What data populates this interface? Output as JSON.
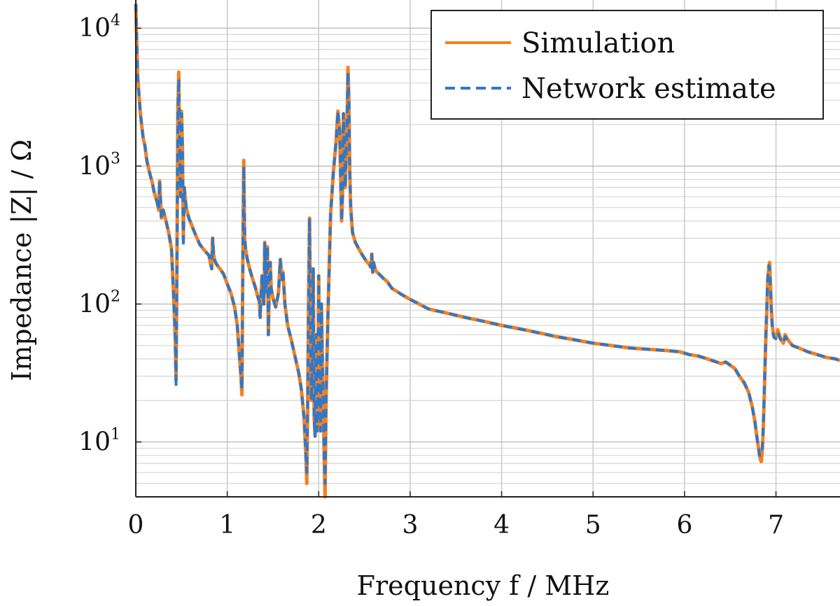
{
  "chart_data": {
    "type": "line",
    "xlabel": "Frequency f / MHz",
    "ylabel": "Impedance |Z| / Ω",
    "xlim": [
      0,
      7.7
    ],
    "ylim": [
      4,
      16000
    ],
    "yscale": "log",
    "grid": true,
    "legend": "top-right",
    "xticks": [
      {
        "value": 0,
        "label": "0"
      },
      {
        "value": 1,
        "label": "1"
      },
      {
        "value": 2,
        "label": "2"
      },
      {
        "value": 3,
        "label": "3"
      },
      {
        "value": 4,
        "label": "4"
      },
      {
        "value": 5,
        "label": "5"
      },
      {
        "value": 6,
        "label": "6"
      },
      {
        "value": 7,
        "label": "7"
      }
    ],
    "yticks": [
      {
        "value": 10,
        "base": "10",
        "exp": "1"
      },
      {
        "value": 100,
        "base": "10",
        "exp": "2"
      },
      {
        "value": 1000,
        "base": "10",
        "exp": "3"
      },
      {
        "value": 10000,
        "base": "10",
        "exp": "4"
      }
    ],
    "x": [
      0.0,
      0.02,
      0.05,
      0.08,
      0.1,
      0.12,
      0.15,
      0.18,
      0.2,
      0.23,
      0.25,
      0.26,
      0.28,
      0.3,
      0.33,
      0.36,
      0.39,
      0.41,
      0.43,
      0.44,
      0.45,
      0.46,
      0.47,
      0.48,
      0.49,
      0.5,
      0.51,
      0.52,
      0.53,
      0.55,
      0.58,
      0.62,
      0.66,
      0.7,
      0.75,
      0.8,
      0.83,
      0.84,
      0.85,
      0.86,
      0.88,
      0.92,
      0.96,
      1.0,
      1.04,
      1.08,
      1.11,
      1.13,
      1.15,
      1.16,
      1.17,
      1.18,
      1.19,
      1.2,
      1.22,
      1.25,
      1.28,
      1.31,
      1.33,
      1.35,
      1.36,
      1.37,
      1.38,
      1.4,
      1.41,
      1.42,
      1.43,
      1.44,
      1.45,
      1.46,
      1.47,
      1.48,
      1.5,
      1.53,
      1.56,
      1.58,
      1.6,
      1.61,
      1.63,
      1.66,
      1.7,
      1.74,
      1.78,
      1.81,
      1.84,
      1.86,
      1.87,
      1.88,
      1.89,
      1.9,
      1.91,
      1.92,
      1.93,
      1.94,
      1.95,
      1.96,
      1.97,
      1.98,
      1.99,
      2.0,
      2.01,
      2.02,
      2.03,
      2.04,
      2.05,
      2.06,
      2.07,
      2.08,
      2.1,
      2.13,
      2.16,
      2.19,
      2.21,
      2.23,
      2.24,
      2.25,
      2.26,
      2.27,
      2.28,
      2.29,
      2.3,
      2.31,
      2.32,
      2.33,
      2.34,
      2.35,
      2.37,
      2.4,
      2.44,
      2.48,
      2.52,
      2.55,
      2.57,
      2.58,
      2.59,
      2.6,
      2.62,
      2.66,
      2.7,
      2.75,
      2.8,
      2.9,
      3.0,
      3.1,
      3.2,
      3.4,
      3.6,
      3.8,
      4.0,
      4.2,
      4.4,
      4.6,
      4.8,
      5.0,
      5.2,
      5.4,
      5.6,
      5.8,
      5.95,
      6.0,
      6.05,
      6.15,
      6.25,
      6.35,
      6.4,
      6.45,
      6.5,
      6.55,
      6.6,
      6.65,
      6.7,
      6.74,
      6.77,
      6.79,
      6.81,
      6.82,
      6.83,
      6.84,
      6.85,
      6.86,
      6.87,
      6.88,
      6.89,
      6.9,
      6.91,
      6.92,
      6.93,
      6.94,
      6.95,
      6.96,
      6.97,
      6.98,
      7.0,
      7.02,
      7.05,
      7.08,
      7.1,
      7.13,
      7.18,
      7.25,
      7.35,
      7.45,
      7.55,
      7.65,
      7.7
    ],
    "series": [
      {
        "name": "Simulation",
        "color": "#f5801e",
        "dash": "solid",
        "values": [
          15000,
          4500,
          2400,
          1600,
          1400,
          1100,
          900,
          760,
          650,
          560,
          480,
          780,
          420,
          480,
          400,
          330,
          250,
          130,
          60,
          28,
          200,
          2600,
          4800,
          1200,
          600,
          2500,
          1400,
          300,
          700,
          500,
          420,
          360,
          310,
          270,
          245,
          225,
          180,
          300,
          230,
          210,
          195,
          180,
          165,
          140,
          120,
          95,
          70,
          45,
          30,
          22,
          200,
          1100,
          300,
          250,
          210,
          175,
          150,
          130,
          115,
          105,
          80,
          120,
          160,
          100,
          280,
          120,
          160,
          260,
          60,
          140,
          200,
          130,
          110,
          95,
          120,
          210,
          150,
          170,
          100,
          70,
          55,
          42,
          32,
          24,
          15,
          8,
          5,
          20,
          120,
          420,
          80,
          20,
          40,
          180,
          15,
          11,
          60,
          12,
          20,
          160,
          30,
          12,
          100,
          40,
          20,
          8,
          4,
          20,
          80,
          450,
          900,
          1500,
          2500,
          1800,
          800,
          400,
          600,
          2400,
          1500,
          700,
          1200,
          2000,
          5200,
          3000,
          900,
          500,
          330,
          280,
          250,
          225,
          205,
          195,
          185,
          230,
          170,
          200,
          175,
          165,
          155,
          145,
          130,
          118,
          108,
          100,
          92,
          86,
          80,
          75,
          70,
          66,
          62,
          58,
          55,
          52,
          50,
          48,
          47,
          46,
          45,
          44,
          43,
          42,
          40,
          38,
          37,
          38,
          36,
          34,
          30,
          27,
          23,
          18,
          14,
          11,
          9,
          8,
          7.5,
          7.2,
          8.5,
          12,
          20,
          35,
          60,
          90,
          150,
          180,
          200,
          140,
          90,
          70,
          62,
          58,
          57,
          65,
          56,
          52,
          60,
          55,
          50,
          48,
          45,
          43,
          41,
          40,
          39
        ]
      },
      {
        "name": "Network estimate",
        "color": "#2f78c9",
        "dash": "dashed",
        "values": [
          15000,
          4500,
          2400,
          1600,
          1400,
          1100,
          900,
          760,
          650,
          560,
          480,
          780,
          420,
          480,
          400,
          330,
          250,
          130,
          60,
          25,
          200,
          2600,
          4300,
          1200,
          600,
          2400,
          1400,
          260,
          700,
          500,
          420,
          360,
          310,
          270,
          245,
          225,
          180,
          300,
          230,
          210,
          195,
          180,
          165,
          140,
          120,
          95,
          70,
          45,
          30,
          24,
          200,
          1000,
          300,
          250,
          210,
          175,
          150,
          130,
          115,
          105,
          80,
          120,
          160,
          100,
          280,
          120,
          160,
          260,
          60,
          140,
          200,
          130,
          110,
          95,
          120,
          210,
          150,
          170,
          100,
          70,
          55,
          42,
          32,
          24,
          15,
          8,
          6,
          20,
          120,
          420,
          80,
          20,
          40,
          180,
          15,
          11,
          60,
          12,
          20,
          160,
          30,
          12,
          100,
          40,
          20,
          8,
          5,
          20,
          80,
          450,
          900,
          1500,
          2500,
          1800,
          800,
          400,
          600,
          2400,
          1500,
          700,
          1200,
          2000,
          4800,
          3000,
          900,
          500,
          330,
          280,
          250,
          225,
          205,
          195,
          185,
          230,
          170,
          200,
          175,
          165,
          155,
          145,
          130,
          118,
          108,
          100,
          92,
          86,
          80,
          75,
          70,
          66,
          62,
          58,
          55,
          52,
          50,
          48,
          47,
          46,
          45,
          44,
          43,
          42,
          40,
          38,
          37,
          38,
          36,
          34,
          30,
          27,
          23,
          18,
          14,
          11,
          9,
          8,
          8,
          8,
          9,
          13,
          22,
          38,
          65,
          100,
          160,
          190,
          180,
          130,
          85,
          68,
          60,
          57,
          56,
          62,
          55,
          52,
          58,
          54,
          50,
          48,
          45,
          43,
          41,
          40,
          39
        ]
      }
    ]
  }
}
